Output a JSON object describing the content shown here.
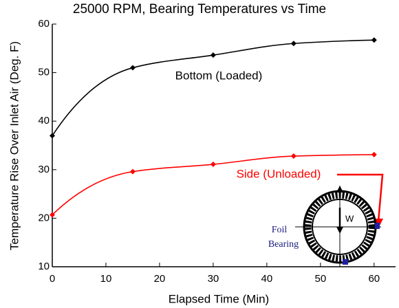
{
  "chart_data": {
    "type": "line",
    "title": "25000 RPM, Bearing Temperatures vs Time",
    "x_label": "Elapsed Time (Min)",
    "y_label": "Temperature Rise Over Inlet Air (Deg. F)",
    "x": [
      0,
      15,
      30,
      45,
      60
    ],
    "series": [
      {
        "name": "Bottom (Loaded)",
        "color": "#000000",
        "values": [
          37,
          51,
          53.6,
          56,
          56.7
        ]
      },
      {
        "name": "Side (Unloaded)",
        "color": "#ff0000",
        "values": [
          20.7,
          29.6,
          31.1,
          32.8,
          33.1
        ]
      }
    ],
    "xlim": [
      0,
      64
    ],
    "xticks": [
      0,
      10,
      20,
      30,
      40,
      50,
      60
    ],
    "ylim": [
      10,
      60
    ],
    "yticks": [
      10,
      20,
      30,
      40,
      50,
      60
    ],
    "annotations": [
      "W",
      "Foil",
      "Bearing"
    ]
  }
}
